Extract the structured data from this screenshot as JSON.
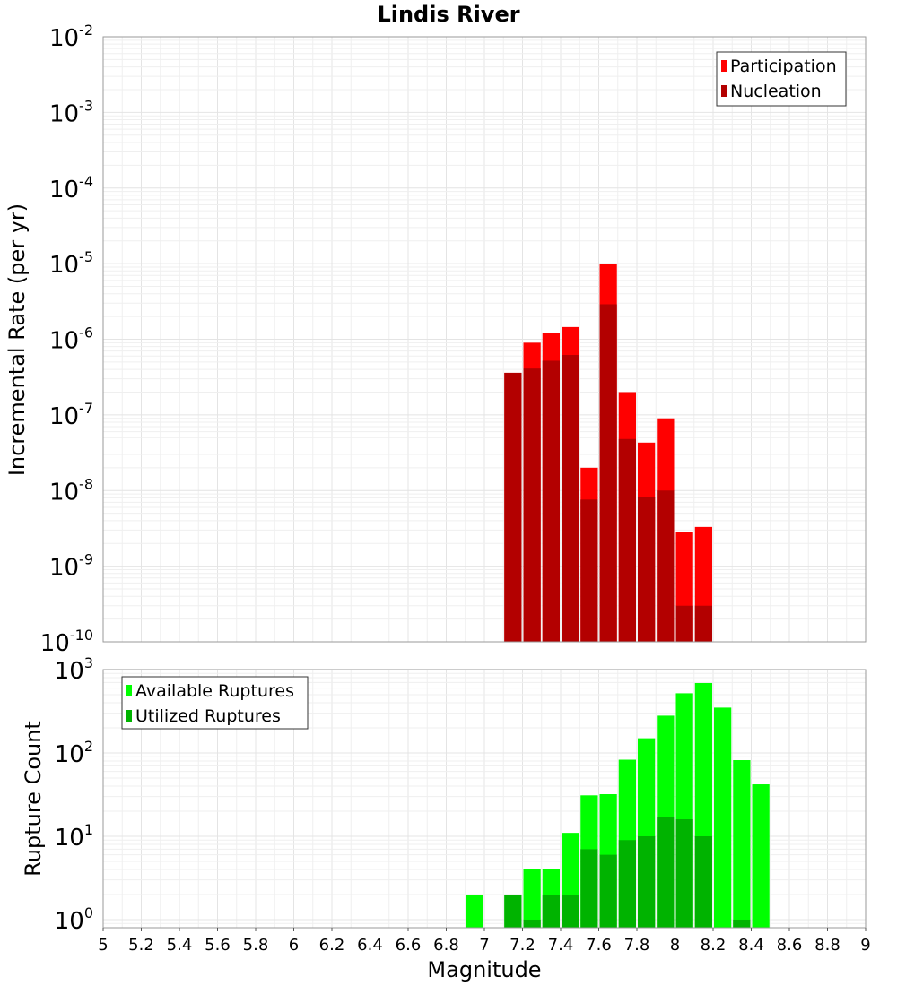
{
  "figure": {
    "title": "Lindis River"
  },
  "chart_data": [
    {
      "type": "bar",
      "panel": "top",
      "title": "Lindis River",
      "xlabel": "Magnitude",
      "ylabel": "Incremental Rate (per yr)",
      "yscale": "log",
      "xlim": [
        5,
        9
      ],
      "ylim": [
        1e-10,
        0.01
      ],
      "bin_width": 0.1,
      "legend_position": "top-right",
      "series": [
        {
          "name": "Participation",
          "color": "#ff0000",
          "x": [
            7.15,
            7.25,
            7.35,
            7.45,
            7.55,
            7.65,
            7.75,
            7.85,
            7.95,
            8.05,
            8.15
          ],
          "values": [
            3.6e-07,
            9e-07,
            1.2e-06,
            1.45e-06,
            2e-08,
            1e-05,
            2e-07,
            4.3e-08,
            9e-08,
            2.8e-09,
            3.3e-09
          ]
        },
        {
          "name": "Nucleation",
          "color": "#b30000",
          "x": [
            7.15,
            7.25,
            7.35,
            7.45,
            7.55,
            7.65,
            7.75,
            7.85,
            7.95,
            8.05,
            8.15
          ],
          "values": [
            3.6e-07,
            4.1e-07,
            5.2e-07,
            6.2e-07,
            7.6e-09,
            2.9e-06,
            4.8e-08,
            8.3e-09,
            1e-08,
            3e-10,
            3e-10
          ]
        }
      ]
    },
    {
      "type": "bar",
      "panel": "bottom",
      "xlabel": "Magnitude",
      "ylabel": "Rupture Count",
      "yscale": "log",
      "xlim": [
        5,
        9
      ],
      "ylim": [
        0.8,
        1000
      ],
      "bin_width": 0.1,
      "legend_position": "top-left",
      "x_ticks": [
        "5",
        "5.2",
        "5.4",
        "5.6",
        "5.8",
        "6",
        "6.2",
        "6.4",
        "6.6",
        "6.8",
        "7",
        "7.2",
        "7.4",
        "7.6",
        "7.8",
        "8",
        "8.2",
        "8.4",
        "8.6",
        "8.8",
        "9"
      ],
      "series": [
        {
          "name": "Available Ruptures",
          "color": "#00ff00",
          "x": [
            6.95,
            7.15,
            7.25,
            7.35,
            7.45,
            7.55,
            7.65,
            7.75,
            7.85,
            7.95,
            8.05,
            8.15,
            8.25,
            8.35,
            8.45
          ],
          "values": [
            2,
            2,
            4,
            4,
            11,
            31,
            32,
            83,
            150,
            280,
            520,
            690,
            350,
            82,
            42
          ]
        },
        {
          "name": "Utilized Ruptures",
          "color": "#00b300",
          "x": [
            7.15,
            7.25,
            7.35,
            7.45,
            7.55,
            7.65,
            7.75,
            7.85,
            7.95,
            8.05,
            8.15,
            8.35
          ],
          "values": [
            2,
            1,
            2,
            2,
            7,
            6,
            9,
            10,
            17,
            16,
            10,
            1
          ]
        }
      ]
    }
  ]
}
